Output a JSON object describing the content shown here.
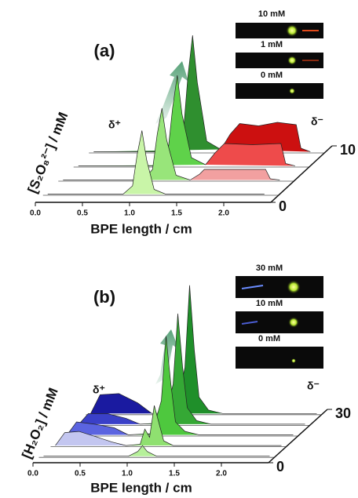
{
  "chart_data": [
    {
      "type": "waterfall",
      "label": "(a)",
      "xlabel": "BPE length / cm",
      "ylabel": "[S₂O₈²⁻] / mM",
      "left_label": "δ⁺",
      "right_label": "δ⁻",
      "insets": [
        "10 mM",
        "1 mM",
        "0 mM"
      ],
      "xlim": [
        0,
        2.5
      ],
      "xticks": [
        {
          "value": 0,
          "label": "0.0"
        },
        0.5,
        {
          "value": 1,
          "label": "1.0"
        },
        1.5,
        {
          "value": 2,
          "label": "2.0"
        }
      ],
      "zlim": [
        0,
        10
      ],
      "zticks": [
        0,
        10
      ],
      "traces": [
        [
          {
            "color": "#c9f5a8",
            "x": [
              0.05,
              0.85,
              0.95,
              1.0,
              1.05,
              1.1,
              1.18,
              1.3,
              2.35
            ],
            "values": [
              0.01,
              0.01,
              0.08,
              0.35,
              0.55,
              0.3,
              0.05,
              0.01,
              0.01
            ]
          }
        ],
        [
          {
            "color": "#98e57a",
            "x": [
              0.05,
              0.9,
              1.0,
              1.05,
              1.1,
              1.15,
              1.25,
              1.4
            ],
            "values": [
              0.01,
              0.01,
              0.1,
              0.4,
              0.62,
              0.35,
              0.05,
              0.01
            ]
          },
          {
            "color": "#f2a0a0",
            "x": [
              1.4,
              1.5,
              1.55,
              2.2,
              2.25,
              2.35
            ],
            "values": [
              0.01,
              0.06,
              0.1,
              0.1,
              0.02,
              0.01
            ]
          }
        ],
        [
          {
            "color": "#5fd24a",
            "x": [
              0.05,
              0.9,
              1.0,
              1.05,
              1.1,
              1.15,
              1.25,
              1.4
            ],
            "values": [
              0.01,
              0.01,
              0.12,
              0.5,
              0.78,
              0.45,
              0.08,
              0.02
            ]
          },
          {
            "color": "#ee4b4b",
            "x": [
              1.4,
              1.5,
              1.6,
              1.9,
              2.2,
              2.25,
              2.35
            ],
            "values": [
              0.02,
              0.12,
              0.2,
              0.19,
              0.2,
              0.03,
              0.01
            ]
          }
        ],
        [
          {
            "color": "#2f8f2f",
            "x": [
              0.05,
              0.9,
              1.0,
              1.05,
              1.1,
              1.15,
              1.25,
              1.4
            ],
            "values": [
              0.01,
              0.01,
              0.15,
              0.65,
              1.0,
              0.6,
              0.1,
              0.03
            ]
          },
          {
            "color": "#cc1010",
            "x": [
              1.4,
              1.5,
              1.6,
              1.8,
              2.0,
              2.2,
              2.25,
              2.35
            ],
            "values": [
              0.03,
              0.16,
              0.25,
              0.23,
              0.26,
              0.24,
              0.04,
              0.01
            ]
          }
        ]
      ]
    },
    {
      "type": "waterfall",
      "label": "(b)",
      "xlabel": "BPE length / cm",
      "ylabel": "[H₂O₂] / mM",
      "left_label": "δ⁺",
      "right_label": "δ⁻",
      "insets": [
        "30 mM",
        "10 mM",
        "0 mM"
      ],
      "xlim": [
        0,
        2.5
      ],
      "xticks": [
        {
          "value": 0,
          "label": "0.0"
        },
        0.5,
        {
          "value": 1,
          "label": "1.0"
        },
        1.5,
        {
          "value": 2,
          "label": "2.0"
        }
      ],
      "zlim": [
        0,
        30
      ],
      "zticks": [
        0,
        30
      ],
      "traces": [
        [
          {
            "color": "#b6f09a",
            "x": [
              0.05,
              0.95,
              1.05,
              1.1,
              1.15,
              1.25,
              2.45
            ],
            "values": [
              0.01,
              0.01,
              0.05,
              0.1,
              0.05,
              0.01,
              0.01
            ]
          }
        ],
        [
          {
            "color": "#c3c6f0",
            "x": [
              0.05,
              0.15,
              0.3,
              0.5,
              0.65,
              0.8
            ],
            "values": [
              0.01,
              0.12,
              0.13,
              0.08,
              0.04,
              0.01
            ]
          },
          {
            "color": "#8fe070",
            "x": [
              0.8,
              0.95,
              1.0,
              1.05,
              1.1,
              1.15,
              1.2,
              1.3,
              2.45
            ],
            "values": [
              0.01,
              0.02,
              0.15,
              0.08,
              0.35,
              0.2,
              0.05,
              0.01,
              0.01
            ]
          }
        ],
        [
          {
            "color": "#5b64e0",
            "x": [
              0.05,
              0.15,
              0.35,
              0.55,
              0.7
            ],
            "values": [
              0.01,
              0.12,
              0.1,
              0.07,
              0.01
            ]
          },
          {
            "color": "#4ec83e",
            "x": [
              0.7,
              0.95,
              1.05,
              1.1,
              1.15,
              1.2,
              1.3,
              1.45,
              2.45
            ],
            "values": [
              0.01,
              0.02,
              0.3,
              0.85,
              0.45,
              0.12,
              0.04,
              0.01,
              0.01
            ]
          }
        ],
        [
          {
            "color": "#3a40c8",
            "x": [
              0.05,
              0.15,
              0.35,
              0.55,
              0.7
            ],
            "values": [
              0.01,
              0.1,
              0.1,
              0.06,
              0.01
            ]
          },
          {
            "color": "#35a835",
            "x": [
              0.7,
              0.95,
              1.05,
              1.1,
              1.15,
              1.2,
              1.3,
              1.45,
              2.45
            ],
            "values": [
              0.01,
              0.02,
              0.35,
              0.95,
              0.5,
              0.15,
              0.04,
              0.01,
              0.01
            ]
          }
        ],
        [
          {
            "color": "#1a1aa0",
            "x": [
              0.05,
              0.15,
              0.35,
              0.55,
              0.7
            ],
            "values": [
              0.01,
              0.17,
              0.18,
              0.1,
              0.01
            ]
          },
          {
            "color": "#1f8f2a",
            "x": [
              0.7,
              0.95,
              1.05,
              1.1,
              1.15,
              1.2,
              1.3,
              1.45,
              2.45
            ],
            "values": [
              0.01,
              0.02,
              0.4,
              1.1,
              0.55,
              0.15,
              0.04,
              0.01,
              0.01
            ]
          }
        ]
      ]
    }
  ]
}
